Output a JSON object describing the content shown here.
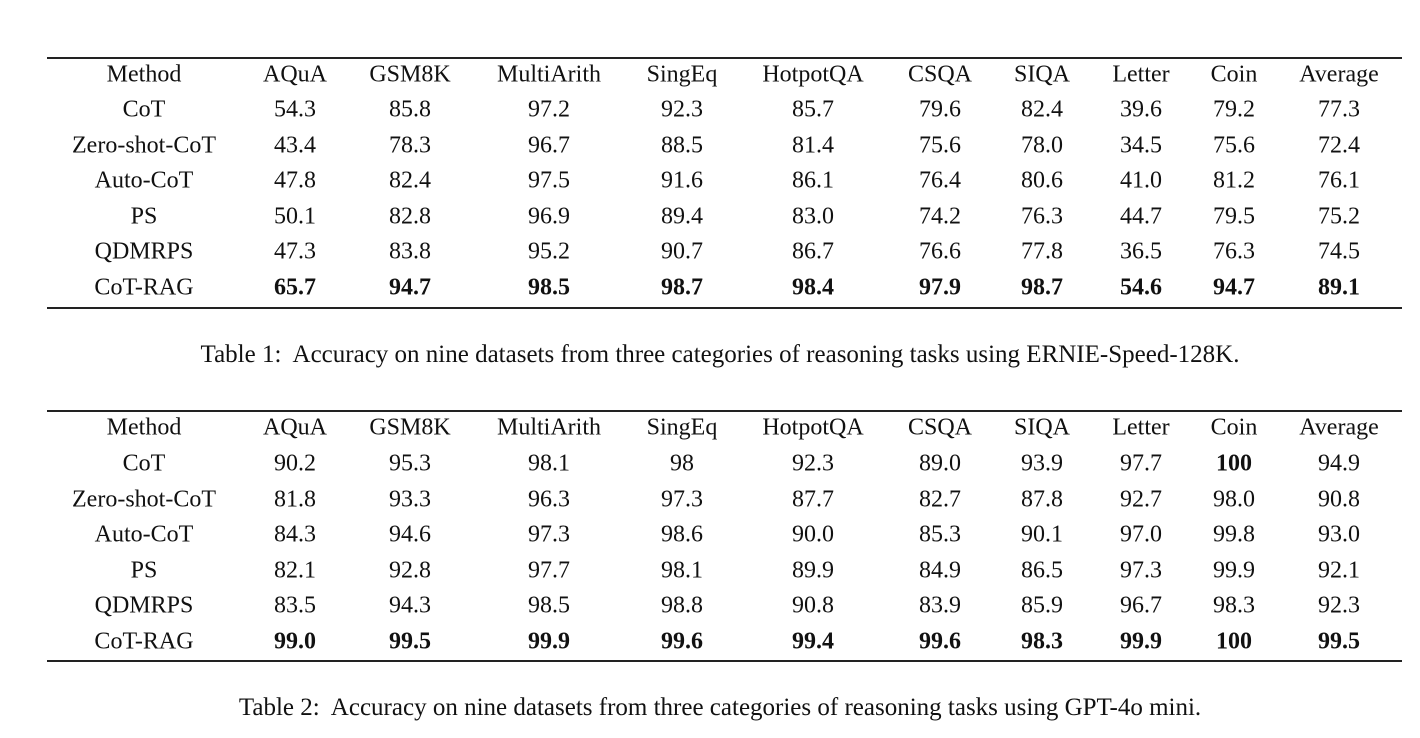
{
  "tables": [
    {
      "header": [
        "Method",
        "AQuA",
        "GSM8K",
        "MultiArith",
        "SingEq",
        "HotpotQA",
        "CSQA",
        "SIQA",
        "Letter",
        "Coin",
        "Average"
      ],
      "rows": [
        [
          "CoT",
          "54.3",
          "85.8",
          "97.2",
          "92.3",
          "85.7",
          "79.6",
          "82.4",
          "39.6",
          "79.2",
          "77.3"
        ],
        [
          "Zero-shot-CoT",
          "43.4",
          "78.3",
          "96.7",
          "88.5",
          "81.4",
          "75.6",
          "78.0",
          "34.5",
          "75.6",
          "72.4"
        ],
        [
          "Auto-CoT",
          "47.8",
          "82.4",
          "97.5",
          "91.6",
          "86.1",
          "76.4",
          "80.6",
          "41.0",
          "81.2",
          "76.1"
        ],
        [
          "PS",
          "50.1",
          "82.8",
          "96.9",
          "89.4",
          "83.0",
          "74.2",
          "76.3",
          "44.7",
          "79.5",
          "75.2"
        ],
        [
          "QDMRPS",
          "47.3",
          "83.8",
          "95.2",
          "90.7",
          "86.7",
          "76.6",
          "77.8",
          "36.5",
          "76.3",
          "74.5"
        ],
        [
          "CoT-RAG",
          "65.7",
          "94.7",
          "98.5",
          "98.7",
          "98.4",
          "97.9",
          "98.7",
          "54.6",
          "94.7",
          "89.1"
        ]
      ],
      "bold": [
        [
          5,
          1
        ],
        [
          5,
          2
        ],
        [
          5,
          3
        ],
        [
          5,
          4
        ],
        [
          5,
          5
        ],
        [
          5,
          6
        ],
        [
          5,
          7
        ],
        [
          5,
          8
        ],
        [
          5,
          9
        ],
        [
          5,
          10
        ]
      ],
      "caption": "Table 1:  Accuracy on nine datasets from three categories of reasoning tasks using ERNIE-Speed-128K."
    },
    {
      "header": [
        "Method",
        "AQuA",
        "GSM8K",
        "MultiArith",
        "SingEq",
        "HotpotQA",
        "CSQA",
        "SIQA",
        "Letter",
        "Coin",
        "Average"
      ],
      "rows": [
        [
          "CoT",
          "90.2",
          "95.3",
          "98.1",
          "98",
          "92.3",
          "89.0",
          "93.9",
          "97.7",
          "100",
          "94.9"
        ],
        [
          "Zero-shot-CoT",
          "81.8",
          "93.3",
          "96.3",
          "97.3",
          "87.7",
          "82.7",
          "87.8",
          "92.7",
          "98.0",
          "90.8"
        ],
        [
          "Auto-CoT",
          "84.3",
          "94.6",
          "97.3",
          "98.6",
          "90.0",
          "85.3",
          "90.1",
          "97.0",
          "99.8",
          "93.0"
        ],
        [
          "PS",
          "82.1",
          "92.8",
          "97.7",
          "98.1",
          "89.9",
          "84.9",
          "86.5",
          "97.3",
          "99.9",
          "92.1"
        ],
        [
          "QDMRPS",
          "83.5",
          "94.3",
          "98.5",
          "98.8",
          "90.8",
          "83.9",
          "85.9",
          "96.7",
          "98.3",
          "92.3"
        ],
        [
          "CoT-RAG",
          "99.0",
          "99.5",
          "99.9",
          "99.6",
          "99.4",
          "99.6",
          "98.3",
          "99.9",
          "100",
          "99.5"
        ]
      ],
      "bold": [
        [
          0,
          9
        ],
        [
          5,
          1
        ],
        [
          5,
          2
        ],
        [
          5,
          3
        ],
        [
          5,
          4
        ],
        [
          5,
          5
        ],
        [
          5,
          6
        ],
        [
          5,
          7
        ],
        [
          5,
          8
        ],
        [
          5,
          9
        ],
        [
          5,
          10
        ]
      ],
      "caption": "Table 2:  Accuracy on nine datasets from three categories of reasoning tasks using GPT-4o mini."
    }
  ]
}
